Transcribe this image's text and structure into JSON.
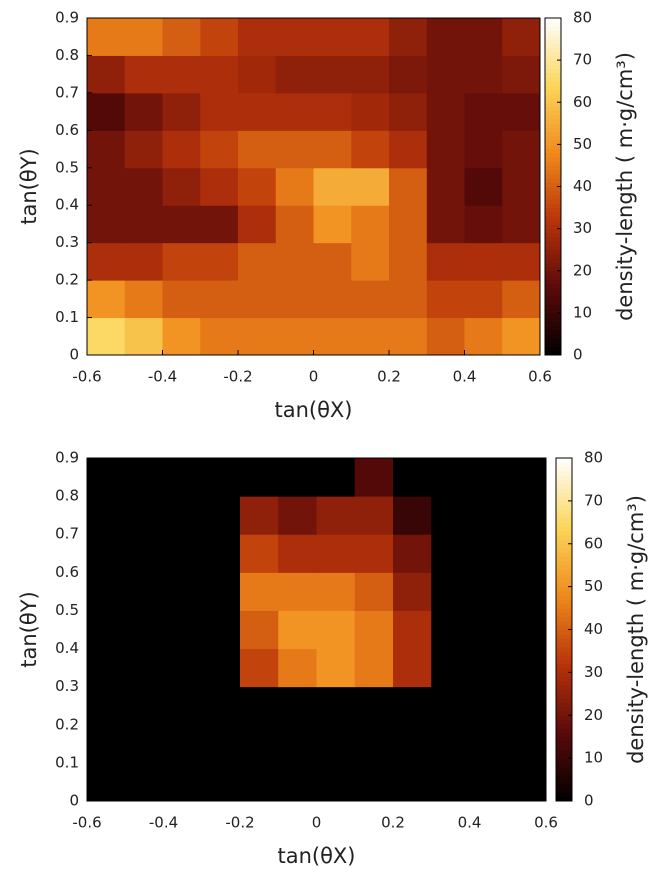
{
  "chart_data": [
    {
      "type": "heatmap",
      "xlabel": "tan(θX)",
      "ylabel": "tan(θY)",
      "colorbar_label": "density-length ( m·g/cm³)",
      "x": [
        -0.55,
        -0.45,
        -0.35,
        -0.25,
        -0.15,
        -0.05,
        0.05,
        0.15,
        0.25,
        0.35,
        0.45,
        0.55
      ],
      "y": [
        0.05,
        0.15,
        0.25,
        0.35,
        0.45,
        0.55,
        0.65,
        0.75,
        0.85
      ],
      "z": [
        [
          65,
          60,
          50,
          45,
          45,
          45,
          45,
          45,
          45,
          40,
          45,
          50
        ],
        [
          50,
          45,
          40,
          40,
          40,
          40,
          40,
          40,
          40,
          35,
          35,
          40
        ],
        [
          30,
          30,
          35,
          35,
          40,
          40,
          40,
          45,
          40,
          30,
          30,
          30
        ],
        [
          20,
          20,
          20,
          20,
          30,
          40,
          50,
          45,
          40,
          20,
          18,
          20
        ],
        [
          20,
          20,
          25,
          30,
          35,
          45,
          55,
          55,
          40,
          20,
          15,
          20
        ],
        [
          20,
          25,
          30,
          35,
          40,
          40,
          40,
          35,
          30,
          20,
          18,
          20
        ],
        [
          15,
          20,
          25,
          30,
          30,
          30,
          30,
          28,
          25,
          20,
          18,
          18
        ],
        [
          25,
          30,
          30,
          30,
          28,
          25,
          25,
          25,
          22,
          20,
          20,
          22
        ],
        [
          45,
          45,
          40,
          35,
          30,
          30,
          30,
          30,
          25,
          20,
          20,
          25
        ]
      ],
      "xlim": [
        -0.6,
        0.6
      ],
      "xticks": [
        -0.6,
        -0.4,
        -0.2,
        0,
        0.2,
        0.4,
        0.6
      ],
      "ylim": [
        0,
        0.9
      ],
      "yticks": [
        0,
        0.1,
        0.2,
        0.3,
        0.4,
        0.5,
        0.6,
        0.7,
        0.8,
        0.9
      ],
      "zlim": [
        0,
        80
      ],
      "zticks": [
        0,
        10,
        20,
        30,
        40,
        50,
        60,
        70,
        80
      ],
      "colormap": [
        "#000000",
        "#5a0a0a",
        "#b8330a",
        "#f08a1c",
        "#fbd65a",
        "#ffffff"
      ]
    },
    {
      "type": "heatmap",
      "xlabel": "tan(θX)",
      "ylabel": "tan(θY)",
      "colorbar_label": "density-length ( m·g/cm³)",
      "x": [
        -0.55,
        -0.45,
        -0.35,
        -0.25,
        -0.15,
        -0.05,
        0.05,
        0.15,
        0.25,
        0.35,
        0.45,
        0.55
      ],
      "y": [
        0.05,
        0.15,
        0.25,
        0.35,
        0.45,
        0.55,
        0.65,
        0.75,
        0.85
      ],
      "z": [
        [
          0,
          0,
          0,
          0,
          0,
          0,
          0,
          0,
          0,
          0,
          0,
          0
        ],
        [
          0,
          0,
          0,
          0,
          0,
          0,
          0,
          0,
          0,
          0,
          0,
          0
        ],
        [
          0,
          0,
          0,
          0,
          0,
          0,
          0,
          0,
          0,
          0,
          0,
          0
        ],
        [
          0,
          0,
          0,
          0,
          35,
          45,
          50,
          45,
          30,
          0,
          0,
          0
        ],
        [
          0,
          0,
          0,
          0,
          40,
          50,
          50,
          45,
          30,
          0,
          0,
          0
        ],
        [
          0,
          0,
          0,
          0,
          45,
          45,
          45,
          40,
          25,
          0,
          0,
          0
        ],
        [
          0,
          0,
          0,
          0,
          35,
          30,
          30,
          30,
          20,
          0,
          0,
          0
        ],
        [
          0,
          0,
          0,
          0,
          25,
          20,
          25,
          25,
          10,
          0,
          0,
          0
        ],
        [
          0,
          0,
          0,
          0,
          0,
          0,
          0,
          15,
          0,
          0,
          0,
          0
        ]
      ],
      "xlim": [
        -0.6,
        0.6
      ],
      "xticks": [
        -0.6,
        -0.4,
        -0.2,
        0,
        0.2,
        0.4,
        0.6
      ],
      "ylim": [
        0,
        0.9
      ],
      "yticks": [
        0,
        0.1,
        0.2,
        0.3,
        0.4,
        0.5,
        0.6,
        0.7,
        0.8,
        0.9
      ],
      "zlim": [
        0,
        80
      ],
      "zticks": [
        0,
        10,
        20,
        30,
        40,
        50,
        60,
        70,
        80
      ],
      "colormap": [
        "#000000",
        "#5a0a0a",
        "#b8330a",
        "#f08a1c",
        "#fbd65a",
        "#ffffff"
      ]
    }
  ]
}
